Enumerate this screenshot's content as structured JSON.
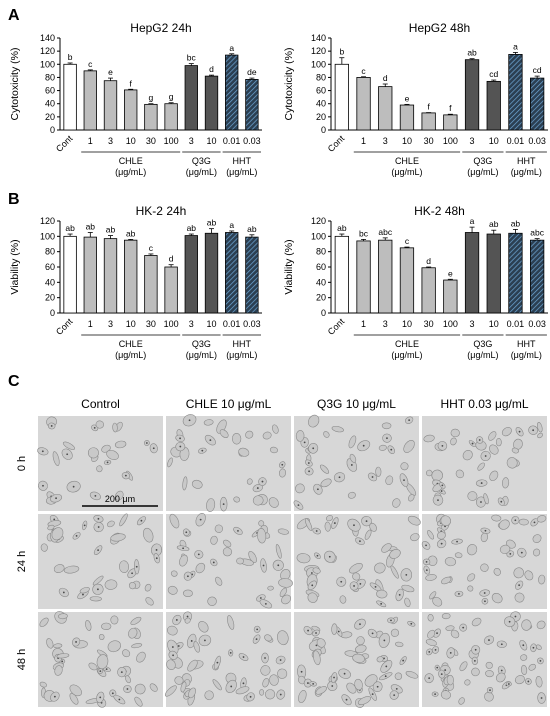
{
  "panels": {
    "a": "A",
    "b": "B",
    "c": "C"
  },
  "colors": {
    "white": "#ffffff",
    "gray": "#bdbdbd",
    "dark": "#545454",
    "hatch_fill": "#2b3f52",
    "hatch_line": "#6fa7d6",
    "axis": "#000000"
  },
  "chart_data": [
    {
      "type": "bar",
      "title": "HepG2 24h",
      "ylabel": "Cytotoxicity (%)",
      "ylim": [
        0,
        140
      ],
      "yticks": [
        0,
        20,
        40,
        60,
        80,
        100,
        120,
        140
      ],
      "categories": [
        "Cont",
        "1",
        "3",
        "10",
        "30",
        "100",
        "3",
        "10",
        "0.01",
        "0.03"
      ],
      "values": [
        100,
        90,
        75,
        61,
        39,
        40,
        98,
        82,
        114,
        77
      ],
      "errors": [
        2,
        1.5,
        4,
        1,
        1,
        1.5,
        3,
        1.5,
        2,
        2
      ],
      "letters": [
        "b",
        "c",
        "e",
        "f",
        "g",
        "g",
        "bc",
        "d",
        "a",
        "de"
      ],
      "bar_styles": [
        "white",
        "gray",
        "gray",
        "gray",
        "gray",
        "gray",
        "dark",
        "dark",
        "hatch",
        "hatch"
      ],
      "groups": [
        {
          "line1": "CHLE",
          "line2": "(μg/mL)"
        },
        {
          "line1": "Q3G",
          "line2": "(μg/mL)"
        },
        {
          "line1": "HHT",
          "line2": "(μg/mL)"
        }
      ]
    },
    {
      "type": "bar",
      "title": "HepG2 48h",
      "ylabel": "Cytotoxicity (%)",
      "ylim": [
        0,
        140
      ],
      "yticks": [
        0,
        20,
        40,
        60,
        80,
        100,
        120,
        140
      ],
      "categories": [
        "Cont",
        "1",
        "3",
        "10",
        "30",
        "100",
        "3",
        "10",
        "0.01",
        "0.03"
      ],
      "values": [
        100,
        80,
        66,
        38,
        26,
        23,
        107,
        74,
        115,
        79
      ],
      "errors": [
        10,
        1,
        4,
        1,
        0.5,
        1,
        1.5,
        2,
        3,
        3
      ],
      "letters": [
        "b",
        "c",
        "d",
        "e",
        "f",
        "f",
        "ab",
        "cd",
        "a",
        "cd"
      ],
      "bar_styles": [
        "white",
        "gray",
        "gray",
        "gray",
        "gray",
        "gray",
        "dark",
        "dark",
        "hatch",
        "hatch"
      ],
      "groups": [
        {
          "line1": "CHLE",
          "line2": "(μg/mL)"
        },
        {
          "line1": "Q3G",
          "line2": "(μg/mL)"
        },
        {
          "line1": "HHT",
          "line2": "(μg/mL)"
        }
      ]
    },
    {
      "type": "bar",
      "title": "HK-2 24h",
      "ylabel": "Viability (%)",
      "ylim": [
        0,
        120
      ],
      "yticks": [
        0,
        20,
        40,
        60,
        80,
        100,
        120
      ],
      "categories": [
        "Cont",
        "1",
        "3",
        "10",
        "30",
        "100",
        "3",
        "10",
        "0.01",
        "0.03"
      ],
      "values": [
        100,
        99,
        97,
        95,
        75,
        60,
        101,
        104,
        105,
        99
      ],
      "errors": [
        3,
        6,
        4,
        1,
        2,
        3,
        2,
        6,
        2,
        3
      ],
      "letters": [
        "ab",
        "ab",
        "ab",
        "ab",
        "c",
        "d",
        "ab",
        "ab",
        "a",
        "ab"
      ],
      "bar_styles": [
        "white",
        "gray",
        "gray",
        "gray",
        "gray",
        "gray",
        "dark",
        "dark",
        "hatch",
        "hatch"
      ],
      "groups": [
        {
          "line1": "CHLE",
          "line2": "(μg/mL)"
        },
        {
          "line1": "Q3G",
          "line2": "(μg/mL)"
        },
        {
          "line1": "HHT",
          "line2": "(μg/mL)"
        }
      ]
    },
    {
      "type": "bar",
      "title": "HK-2 48h",
      "ylabel": "Viability (%)",
      "ylim": [
        0,
        120
      ],
      "yticks": [
        0,
        20,
        40,
        60,
        80,
        100,
        120
      ],
      "categories": [
        "Cont",
        "1",
        "3",
        "10",
        "30",
        "100",
        "3",
        "10",
        "0.01",
        "0.03"
      ],
      "values": [
        100,
        94,
        95,
        85,
        59,
        43,
        105,
        103,
        104,
        95
      ],
      "errors": [
        3,
        2,
        3,
        1,
        1,
        1,
        7,
        5,
        5,
        2
      ],
      "letters": [
        "ab",
        "bc",
        "abc",
        "c",
        "d",
        "e",
        "a",
        "ab",
        "ab",
        "abc"
      ],
      "bar_styles": [
        "white",
        "gray",
        "gray",
        "gray",
        "gray",
        "gray",
        "dark",
        "dark",
        "hatch",
        "hatch"
      ],
      "groups": [
        {
          "line1": "CHLE",
          "line2": "(μg/mL)"
        },
        {
          "line1": "Q3G",
          "line2": "(μg/mL)"
        },
        {
          "line1": "HHT",
          "line2": "(μg/mL)"
        }
      ]
    }
  ],
  "micrographs": {
    "columns": [
      "Control",
      "CHLE 10 μg/mL",
      "Q3G 10 μg/mL",
      "HHT 0.03 μg/mL"
    ],
    "rows": [
      "0 h",
      "24 h",
      "48 h"
    ],
    "scale_bar": "200 μm"
  }
}
